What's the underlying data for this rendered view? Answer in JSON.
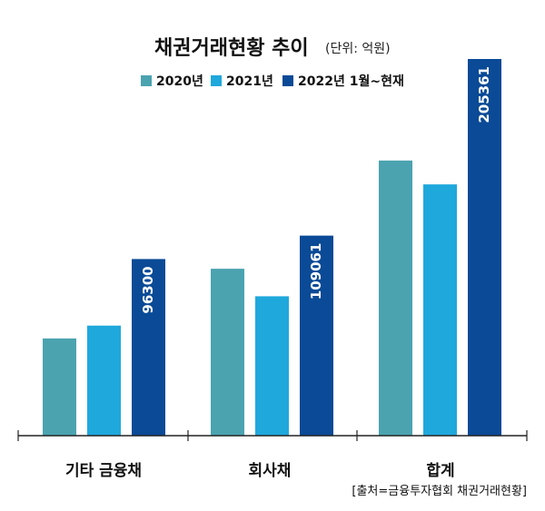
{
  "chart_data": {
    "type": "bar",
    "title": "채권거래현황 추이",
    "subtitle": "(단위: 억원)",
    "categories": [
      "기타 금융채",
      "회사채",
      "합계"
    ],
    "series": [
      {
        "name": "2020년",
        "color": "#4ba3b0",
        "values": [
          53000,
          91000,
          150000
        ]
      },
      {
        "name": "2021년",
        "color": "#1fa8dc",
        "values": [
          60000,
          76000,
          137000
        ]
      },
      {
        "name": "2022년 1월~현재",
        "color": "#0a4a96",
        "values": [
          96300,
          109061,
          205361
        ],
        "labels": [
          "96300",
          "109061",
          "205361"
        ]
      }
    ],
    "ylim": [
      0,
      205361
    ],
    "grid": false,
    "legend": "top",
    "source": "[출처=금융투자협회 채권거래현황]"
  }
}
